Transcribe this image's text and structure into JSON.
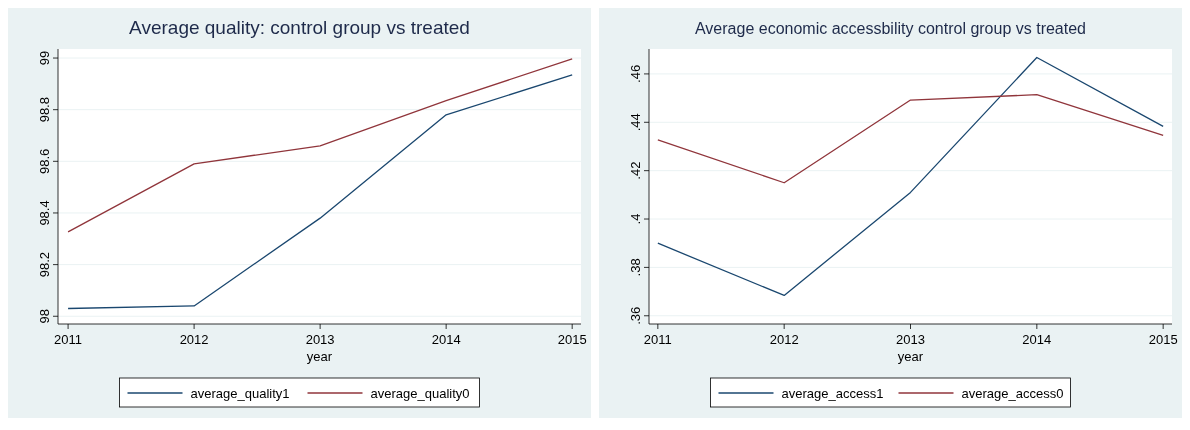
{
  "chart_data": [
    {
      "type": "line",
      "title": "Average quality: control group vs treated",
      "xlabel": "year",
      "x": [
        2011,
        2012,
        2013,
        2014,
        2015
      ],
      "xlim": [
        2010.92,
        2015.07
      ],
      "xticks": [
        2011,
        2012,
        2013,
        2014,
        2015
      ],
      "ylim": [
        97.97,
        99.035
      ],
      "yticks": [
        98,
        98.2,
        98.4,
        98.6,
        98.8,
        99
      ],
      "grid": "y",
      "legend": "bottom",
      "series": [
        {
          "name": "average_quality1",
          "color": "#1a476f",
          "values": [
            98.03,
            98.04,
            98.38,
            98.78,
            98.935
          ]
        },
        {
          "name": "average_quality0",
          "color": "#90353b",
          "values": [
            98.327,
            98.59,
            98.66,
            98.835,
            98.997
          ]
        }
      ]
    },
    {
      "type": "line",
      "title": "Average economic accessbility control group vs treated",
      "xlabel": "year",
      "x": [
        2011,
        2012,
        2013,
        2014,
        2015
      ],
      "xlim": [
        2010.93,
        2015.07
      ],
      "xticks": [
        2011,
        2012,
        2013,
        2014,
        2015
      ],
      "ylim": [
        0.3566,
        0.4703
      ],
      "yticks": [
        {
          "value": 0.36,
          "label": ".36"
        },
        {
          "value": 0.38,
          "label": ".38"
        },
        {
          "value": 0.4,
          "label": ".4"
        },
        {
          "value": 0.42,
          "label": ".42"
        },
        {
          "value": 0.44,
          "label": ".44"
        },
        {
          "value": 0.46,
          "label": ".46"
        }
      ],
      "grid": "y",
      "legend": "bottom",
      "series": [
        {
          "name": "average_access1",
          "color": "#1a476f",
          "values": [
            0.39,
            0.3684,
            0.411,
            0.4668,
            0.4383
          ]
        },
        {
          "name": "average_access0",
          "color": "#90353b",
          "values": [
            0.4327,
            0.415,
            0.4492,
            0.4514,
            0.4346
          ]
        }
      ]
    }
  ]
}
